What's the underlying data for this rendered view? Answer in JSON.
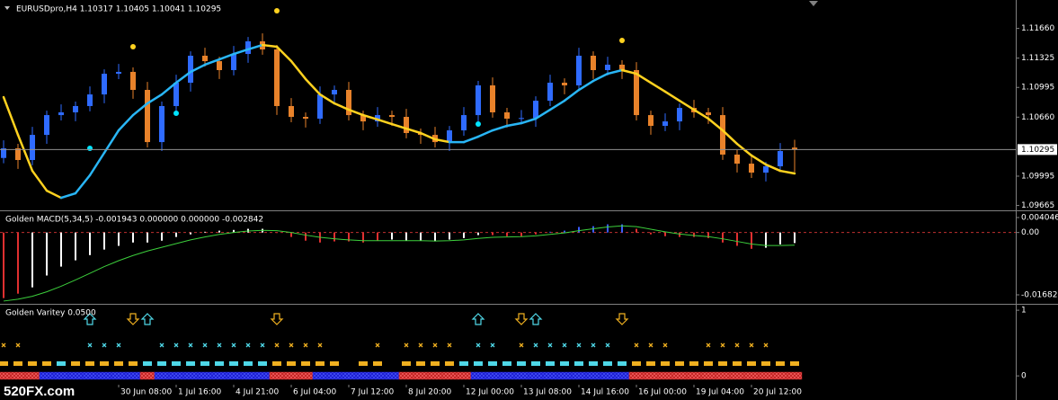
{
  "watermark": "520FX.com",
  "chart_data": [
    {
      "type": "candlestick",
      "title": "EURUSDpro,H4  1.10317 1.10405 1.10041 1.10295",
      "xlim": [
        -0.25,
        70.375
      ],
      "ylim": [
        1.0962,
        1.1198
      ],
      "yticks": [
        {
          "value": 1.1166,
          "label": "1.11660"
        },
        1.11325,
        1.10995,
        {
          "value": 1.1066,
          "label": "1.10660"
        },
        1.09995,
        1.09665
      ],
      "up_color": "#2f6bff",
      "down_color": "#e8822a",
      "open": [
        1.102,
        1.10309,
        1.10177,
        1.1046,
        1.10683,
        1.10714,
        1.10785,
        1.10916,
        1.11149,
        1.1117,
        1.10967,
        1.10379,
        1.10785,
        1.11048,
        1.11352,
        1.11291,
        1.1119,
        1.11372,
        1.11514,
        1.11423,
        1.10785,
        1.10663,
        1.10643,
        1.10916,
        1.10967,
        1.10683,
        1.10612,
        1.10683,
        1.10663,
        1.10481,
        1.1046,
        1.10379,
        1.10511,
        1.10683,
        1.11018,
        1.10714,
        1.10643,
        1.1065,
        1.10845,
        1.11048,
        1.11018,
        1.11352,
        1.1119,
        1.11251,
        1.1119,
        1.10683,
        1.10562,
        1.10612,
        1.10764,
        1.10714,
        1.10683,
        1.10238,
        1.10136,
        1.10035,
        1.10106,
        1.10317
      ],
      "high": [
        1.10399,
        1.10359,
        1.1055,
        1.10733,
        1.10804,
        1.10835,
        1.11006,
        1.11199,
        1.1126,
        1.1122,
        1.11057,
        1.10835,
        1.11138,
        1.11402,
        1.11442,
        1.11341,
        1.11462,
        1.11564,
        1.11604,
        1.11473,
        1.10875,
        1.10713,
        1.11006,
        1.11017,
        1.11057,
        1.10733,
        1.10773,
        1.10733,
        1.10753,
        1.10531,
        1.1055,
        1.10561,
        1.10773,
        1.11068,
        1.11108,
        1.10764,
        1.1074,
        1.10895,
        1.11138,
        1.11098,
        1.11442,
        1.11402,
        1.11341,
        1.11301,
        1.1128,
        1.10733,
        1.10702,
        1.10814,
        1.10854,
        1.10764,
        1.10773,
        1.10288,
        1.10226,
        1.10156,
        1.10368,
        1.10405
      ],
      "low": [
        1.1014,
        1.10077,
        1.10117,
        1.1036,
        1.10623,
        1.10614,
        1.10725,
        1.10816,
        1.11089,
        1.10867,
        1.10319,
        1.10279,
        1.10725,
        1.10948,
        1.11231,
        1.1109,
        1.1113,
        1.11272,
        1.11363,
        1.10685,
        1.10603,
        1.10543,
        1.10583,
        1.10816,
        1.10623,
        1.10512,
        1.10552,
        1.10563,
        1.10421,
        1.1036,
        1.10319,
        1.10279,
        1.10451,
        1.10583,
        1.10654,
        1.10543,
        1.10583,
        1.1055,
        1.10785,
        1.10918,
        1.10958,
        1.1109,
        1.1113,
        1.1109,
        1.10623,
        1.10462,
        1.10502,
        1.10512,
        1.10654,
        1.10583,
        1.10178,
        1.10036,
        1.09975,
        1.09935,
        1.10046,
        1.10041
      ],
      "close": [
        1.10309,
        1.10177,
        1.1046,
        1.10683,
        1.10714,
        1.10785,
        1.10916,
        1.11149,
        1.1117,
        1.10967,
        1.10379,
        1.10785,
        1.11048,
        1.11352,
        1.11291,
        1.1119,
        1.11372,
        1.11514,
        1.11423,
        1.10785,
        1.10663,
        1.10643,
        1.10916,
        1.10967,
        1.10683,
        1.10612,
        1.10683,
        1.10663,
        1.10481,
        1.1046,
        1.10379,
        1.10511,
        1.10683,
        1.11018,
        1.10714,
        1.10643,
        1.1065,
        1.10845,
        1.11048,
        1.11018,
        1.11352,
        1.1119,
        1.11251,
        1.1119,
        1.10683,
        1.10562,
        1.10612,
        1.10764,
        1.10714,
        1.10683,
        1.10238,
        1.10136,
        1.10035,
        1.10106,
        1.10278,
        1.10295
      ],
      "ma": {
        "up_color": "#29b6f6",
        "down_color": "#ffd21f",
        "values": [
          1.10886,
          1.1046,
          1.10055,
          1.09832,
          1.09751,
          1.09802,
          1.10005,
          1.10258,
          1.10511,
          1.10683,
          1.10815,
          1.10916,
          1.11048,
          1.1117,
          1.11251,
          1.11311,
          1.11372,
          1.11423,
          1.11473,
          1.11453,
          1.11291,
          1.11089,
          1.10916,
          1.10815,
          1.10744,
          1.10683,
          1.10633,
          1.10582,
          1.10531,
          1.10481,
          1.1041,
          1.10379,
          1.10379,
          1.1044,
          1.10511,
          1.10562,
          1.10592,
          1.10643,
          1.10744,
          1.10845,
          1.10967,
          1.11068,
          1.11149,
          1.1119,
          1.11149,
          1.11048,
          1.10947,
          1.10845,
          1.10744,
          1.10643,
          1.10511,
          1.10359,
          1.10228,
          1.10126,
          1.10055,
          1.10025
        ]
      },
      "dots": [
        {
          "index": 6,
          "value": 1.10309,
          "color": "#00e5ff"
        },
        {
          "index": 9,
          "value": 1.11453,
          "color": "#ffd21f"
        },
        {
          "index": 12,
          "value": 1.10704,
          "color": "#00e5ff"
        },
        {
          "index": 19,
          "value": 1.11858,
          "color": "#ffd21f"
        },
        {
          "index": 33,
          "value": 1.10582,
          "color": "#00e5ff"
        },
        {
          "index": 43,
          "value": 1.11524,
          "color": "#ffd21f"
        }
      ],
      "last_price": 1.10295
    },
    {
      "type": "macd",
      "title": "Golden MACD(5,34,5) -0.001943 0.000000 0.000000 -0.002842",
      "xlim": [
        -0.25,
        70.375
      ],
      "ylim": [
        -0.019,
        0.0055
      ],
      "yticks": [
        0.004046,
        {
          "value": 0,
          "label": "0.00"
        },
        -0.01682
      ],
      "values": [
        -0.0177,
        -0.0165,
        -0.0148,
        -0.0116,
        -0.0092,
        -0.0075,
        -0.0061,
        -0.0046,
        -0.0036,
        -0.0027,
        -0.0027,
        -0.0022,
        -0.0012,
        -0.0005,
        0.0002,
        0.0005,
        0.0007,
        0.001,
        0.001,
        0,
        -0.0012,
        -0.0022,
        -0.0027,
        -0.0024,
        -0.0024,
        -0.0027,
        -0.0022,
        -0.0019,
        -0.0022,
        -0.0022,
        -0.0024,
        -0.0019,
        -0.0015,
        -0.0007,
        -0.0007,
        -0.001,
        -0.001,
        -0.0005,
        0.0002,
        0.0005,
        0.0015,
        0.0017,
        0.0022,
        0.0022,
        0.001,
        -0.0005,
        -0.001,
        -0.0012,
        -0.0012,
        -0.0015,
        -0.0027,
        -0.0036,
        -0.0044,
        -0.0041,
        -0.0032,
        -0.002842
      ],
      "bar_colors": [
        "#e03030",
        "#e03030",
        "#ffffff",
        "#ffffff",
        "#ffffff",
        "#ffffff",
        "#ffffff",
        "#ffffff",
        "#ffffff",
        "#ffffff",
        "#ffffff",
        "#ffffff",
        "#ffffff",
        "#ffffff",
        "#ffffff",
        "#ffffff",
        "#ffffff",
        "#ffffff",
        "#ffffff",
        "#e03030",
        "#e03030",
        "#e03030",
        "#e03030",
        "#e03030",
        "#e03030",
        "#e03030",
        "#e03030",
        "#ffffff",
        "#ffffff",
        "#ffffff",
        "#ffffff",
        "#ffffff",
        "#ffffff",
        "#ffffff",
        "#e03030",
        "#e03030",
        "#e03030",
        "#e03030",
        "#3a5cff",
        "#3a5cff",
        "#3a5cff",
        "#3a5cff",
        "#3a5cff",
        "#3a5cff",
        "#e03030",
        "#e03030",
        "#e03030",
        "#e03030",
        "#e03030",
        "#e03030",
        "#e03030",
        "#e03030",
        "#e03030",
        "#ffffff",
        "#ffffff",
        "#ffffff"
      ],
      "signal_color": "#3ccf3c",
      "signal": [
        -0.0185,
        -0.018,
        -0.0172,
        -0.016,
        -0.0145,
        -0.0128,
        -0.011,
        -0.0092,
        -0.0076,
        -0.0062,
        -0.005,
        -0.004,
        -0.003,
        -0.002,
        -0.0012,
        -0.0005,
        0,
        0.0004,
        0.0006,
        0.0005,
        0,
        -0.0007,
        -0.0013,
        -0.0017,
        -0.002,
        -0.0022,
        -0.0022,
        -0.0022,
        -0.0022,
        -0.0022,
        -0.0023,
        -0.0022,
        -0.002,
        -0.0016,
        -0.0013,
        -0.0012,
        -0.0011,
        -0.0009,
        -0.0005,
        -0.0001,
        0.0005,
        0.001,
        0.0015,
        0.0018,
        0.0016,
        0.0009,
        0.0002,
        -0.0004,
        -0.0008,
        -0.0011,
        -0.0017,
        -0.0024,
        -0.0031,
        -0.0035,
        -0.0035,
        -0.0034
      ]
    },
    {
      "type": "signals",
      "title": "Golden Varitey 0.0500",
      "xlim": [
        -0.25,
        70.375
      ],
      "ylim": [
        -0.34,
        1.07
      ],
      "yticks": [
        1,
        0
      ],
      "xticks": [
        {
          "value": 8,
          "label": "30 Jun 08:00"
        },
        {
          "value": 12,
          "label": "1 Jul 16:00"
        },
        {
          "value": 16,
          "label": "4 Jul 21:00"
        },
        {
          "value": 20,
          "label": "6 Jul 04:00"
        },
        {
          "value": 24,
          "label": "7 Jul 12:00"
        },
        {
          "value": 28,
          "label": "8 Jul 20:00"
        },
        {
          "value": 32,
          "label": "12 Jul 00:00"
        },
        {
          "value": 36,
          "label": "13 Jul 08:00"
        },
        {
          "value": 40,
          "label": "14 Jul 16:00"
        },
        {
          "value": 44,
          "label": "16 Jul 00:00"
        },
        {
          "value": 48,
          "label": "19 Jul 04:00"
        },
        {
          "value": 52,
          "label": "20 Jul 12:00"
        }
      ],
      "up_color": "#4fd8e8",
      "down_color": "#f0b020",
      "band_up_color": "#1a1ad0",
      "band_down_color": "#c02020",
      "arrows": [
        {
          "index": 6,
          "value": 1
        },
        {
          "index": 9,
          "value": -1
        },
        {
          "index": 10,
          "value": 1
        },
        {
          "index": 19,
          "value": -1
        },
        {
          "index": 33,
          "value": 1
        },
        {
          "index": 36,
          "value": -1
        },
        {
          "index": 37,
          "value": 1
        },
        {
          "index": 43,
          "value": -1
        }
      ],
      "markers": [
        -1,
        -1,
        0,
        0,
        0,
        0,
        1,
        1,
        1,
        0,
        0,
        1,
        1,
        1,
        1,
        1,
        1,
        1,
        1,
        -1,
        -1,
        -1,
        -1,
        0,
        0,
        0,
        -1,
        0,
        -1,
        -1,
        -1,
        -1,
        0,
        1,
        1,
        0,
        -1,
        1,
        1,
        1,
        1,
        1,
        1,
        0,
        -1,
        -1,
        -1,
        0,
        0,
        -1,
        -1,
        -1,
        -1,
        -1,
        0,
        0
      ],
      "squares": [
        -1,
        -1,
        -1,
        -1,
        1,
        -1,
        -1,
        -1,
        -1,
        -1,
        1,
        1,
        1,
        1,
        1,
        1,
        1,
        1,
        1,
        -1,
        -1,
        -1,
        -1,
        -1,
        0,
        -1,
        -1,
        0,
        -1,
        -1,
        -1,
        -1,
        1,
        1,
        1,
        1,
        1,
        1,
        1,
        1,
        1,
        1,
        1,
        1,
        -1,
        -1,
        -1,
        -1,
        -1,
        -1,
        -1,
        -1,
        -1,
        -1,
        -1,
        -1
      ],
      "band": [
        -1,
        -1,
        -1,
        1,
        1,
        1,
        1,
        1,
        1,
        1,
        -1,
        1,
        1,
        1,
        1,
        1,
        1,
        1,
        1,
        -1,
        -1,
        -1,
        1,
        1,
        1,
        1,
        1,
        1,
        -1,
        -1,
        -1,
        -1,
        -1,
        1,
        1,
        1,
        1,
        1,
        1,
        1,
        1,
        1,
        1,
        1,
        -1,
        -1,
        -1,
        -1,
        -1,
        -1,
        -1,
        -1,
        -1,
        -1,
        -1,
        -1
      ]
    }
  ]
}
